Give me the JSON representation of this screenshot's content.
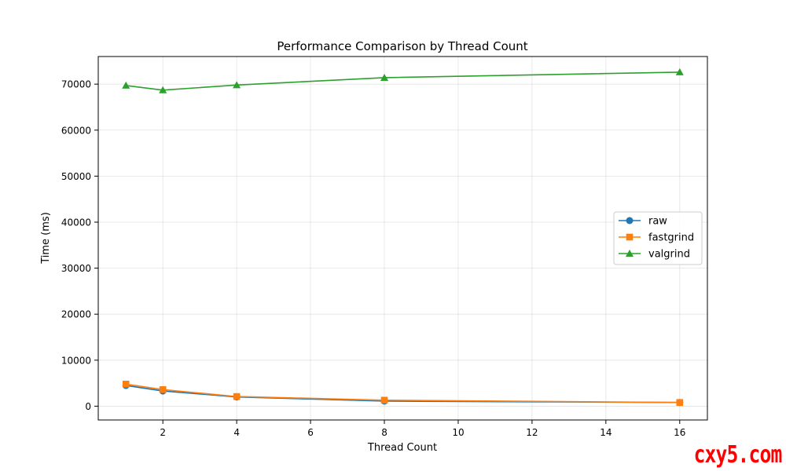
{
  "chart_data": {
    "type": "line",
    "title": "Performance Comparison by Thread Count",
    "xlabel": "Thread Count",
    "ylabel": "Time (ms)",
    "xlim": [
      0.25,
      16.75
    ],
    "ylim": [
      -3000,
      76000
    ],
    "x_ticks": [
      2,
      4,
      6,
      8,
      10,
      12,
      14,
      16
    ],
    "y_ticks": [
      0,
      10000,
      20000,
      30000,
      40000,
      50000,
      60000,
      70000
    ],
    "grid": true,
    "legend_position": "center-right",
    "series": [
      {
        "name": "raw",
        "color": "#1f77b4",
        "marker": "circle",
        "x": [
          1,
          2,
          4,
          8,
          16
        ],
        "y": [
          4500,
          3300,
          2000,
          1100,
          800
        ]
      },
      {
        "name": "fastgrind",
        "color": "#ff7f0e",
        "marker": "square",
        "x": [
          1,
          2,
          4,
          8,
          16
        ],
        "y": [
          4800,
          3600,
          2100,
          1300,
          800
        ]
      },
      {
        "name": "valgrind",
        "color": "#2ca02c",
        "marker": "triangle",
        "x": [
          1,
          2,
          4,
          8,
          16
        ],
        "y": [
          69700,
          68700,
          69800,
          71400,
          72600
        ]
      }
    ]
  },
  "watermark": {
    "text": "cxy5.com",
    "color": "#ff0000"
  }
}
